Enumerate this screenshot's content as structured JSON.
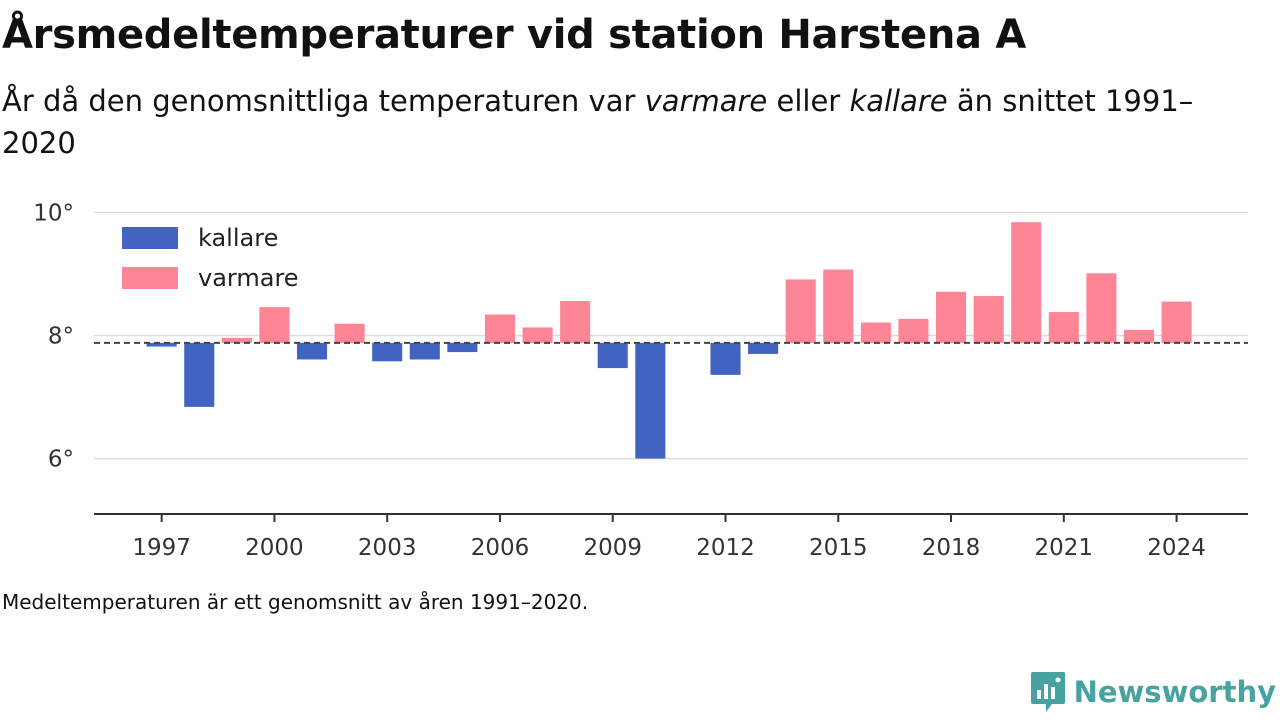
{
  "header": {
    "title": "Årsmedeltemperaturer vid station Harstena A",
    "subtitle_pre": "År då den genomsnittliga temperaturen var ",
    "subtitle_em1": "varmare",
    "subtitle_mid": " eller ",
    "subtitle_em2": "kallare",
    "subtitle_post": " än snittet 1991–2020"
  },
  "footnote": "Medeltemperaturen är ett genomsnitt av åren 1991–2020.",
  "brand": {
    "name": "Newsworthy",
    "color": "#47a3a0"
  },
  "colors": {
    "kallare": "#4263c0",
    "varmare": "#fd8595",
    "baseline": "#444444",
    "grid": "#dddddd",
    "axis": "#333333"
  },
  "chart_data": {
    "type": "bar",
    "baseline": 7.88,
    "ylim": [
      5.1,
      10.2
    ],
    "yticks": [
      6,
      8,
      10
    ],
    "ytick_labels": [
      "6°",
      "8°",
      "10°"
    ],
    "xticks": [
      1997,
      2000,
      2003,
      2006,
      2009,
      2012,
      2015,
      2018,
      2021,
      2024
    ],
    "xticks_labels": [
      "1997",
      "2000",
      "2003",
      "2006",
      "2009",
      "2012",
      "2015",
      "2018",
      "2021",
      "2024"
    ],
    "legend": {
      "position": "top-left",
      "items": [
        {
          "key": "kallare",
          "label": "kallare"
        },
        {
          "key": "varmare",
          "label": "varmare"
        }
      ]
    },
    "grid": true,
    "years": [
      1997,
      1998,
      1999,
      2000,
      2001,
      2002,
      2003,
      2004,
      2005,
      2006,
      2007,
      2008,
      2009,
      2010,
      2011,
      2012,
      2013,
      2014,
      2015,
      2016,
      2017,
      2018,
      2019,
      2020,
      2021,
      2022,
      2023,
      2024
    ],
    "values": [
      7.82,
      6.84,
      7.96,
      8.46,
      7.61,
      8.19,
      7.58,
      7.61,
      7.73,
      8.34,
      8.13,
      8.56,
      7.47,
      6.0,
      null,
      7.36,
      7.7,
      8.91,
      9.07,
      8.21,
      8.27,
      8.71,
      8.64,
      9.84,
      8.38,
      9.01,
      8.09,
      8.55
    ]
  }
}
